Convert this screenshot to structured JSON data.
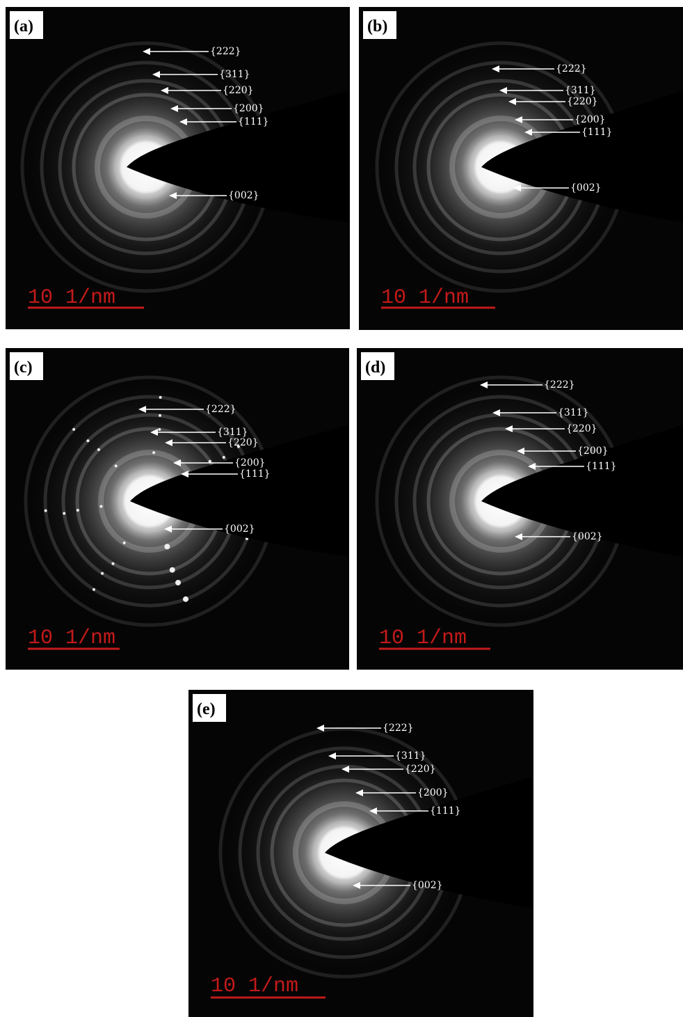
{
  "panels": [
    {
      "label": "(a)",
      "rings": [
        "{222}",
        "{311}",
        "{220}",
        "{200}",
        "{111}",
        "{002}"
      ],
      "scale_bar": "10 1/nm"
    },
    {
      "label": "(b)",
      "rings": [
        "{222}",
        "{311}",
        "{220}",
        "{200}",
        "{111}",
        "{002}"
      ],
      "scale_bar": "10 1/nm"
    },
    {
      "label": "(c)",
      "rings": [
        "{222}",
        "{311}",
        "{220}",
        "{200}",
        "{111}",
        "{002}"
      ],
      "scale_bar": "10 1/nm"
    },
    {
      "label": "(d)",
      "rings": [
        "{222}",
        "{311}",
        "{220}",
        "{200}",
        "{111}",
        "{002}"
      ],
      "scale_bar": "10 1/nm"
    },
    {
      "label": "(e)",
      "rings": [
        "{222}",
        "{311}",
        "{220}",
        "{200}",
        "{111}",
        "{002}"
      ],
      "scale_bar": "10 1/nm"
    }
  ]
}
